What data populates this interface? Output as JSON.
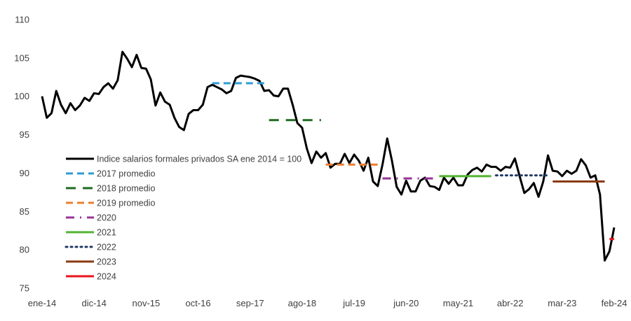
{
  "chart_data": {
    "type": "line",
    "title": "",
    "xlabel": "",
    "ylabel": "",
    "ylim": [
      75,
      110
    ],
    "yticks": [
      75,
      80,
      85,
      90,
      95,
      100,
      105,
      110
    ],
    "x_start_index": 0,
    "x_end_index": 121,
    "x_tick_labels": [
      {
        "label": "ene-14",
        "index": 0
      },
      {
        "label": "dic-14",
        "index": 11
      },
      {
        "label": "nov-15",
        "index": 22
      },
      {
        "label": "oct-16",
        "index": 33
      },
      {
        "label": "sep-17",
        "index": 44
      },
      {
        "label": "ago-18",
        "index": 55
      },
      {
        "label": "jul-19",
        "index": 66
      },
      {
        "label": "jun-20",
        "index": 77
      },
      {
        "label": "may-21",
        "index": 88
      },
      {
        "label": "abr-22",
        "index": 99
      },
      {
        "label": "mar-23",
        "index": 110
      },
      {
        "label": "feb-24",
        "index": 121
      }
    ],
    "series": [
      {
        "name": "Indice salarios formales privados SA ene 2014 = 100",
        "color": "#000000",
        "dash": "solid",
        "values": [
          100.0,
          97.2,
          97.8,
          100.7,
          98.9,
          97.8,
          99.1,
          98.2,
          98.8,
          99.8,
          99.4,
          100.4,
          100.3,
          101.2,
          101.7,
          101.0,
          102.1,
          105.8,
          104.9,
          103.8,
          105.4,
          103.7,
          103.6,
          102.2,
          98.8,
          100.5,
          99.3,
          98.9,
          97.2,
          96.0,
          95.6,
          97.7,
          98.2,
          98.2,
          98.9,
          101.2,
          101.5,
          101.2,
          100.9,
          100.4,
          100.7,
          102.4,
          102.7,
          102.6,
          102.5,
          102.3,
          102.0,
          100.7,
          100.8,
          100.1,
          100.0,
          101.0,
          101.0,
          98.9,
          96.5,
          95.9,
          93.2,
          91.3,
          92.8,
          92.0,
          92.6,
          90.7,
          91.2,
          91.2,
          92.5,
          91.3,
          92.4,
          91.6,
          90.3,
          92.0,
          88.9,
          88.3,
          91.1,
          94.5,
          91.6,
          88.2,
          87.2,
          89.0,
          87.6,
          87.6,
          89.0,
          89.4,
          88.3,
          88.2,
          87.8,
          89.4,
          88.6,
          89.4,
          88.4,
          88.4,
          89.8,
          90.4,
          90.7,
          90.2,
          91.1,
          90.8,
          90.8,
          90.3,
          90.8,
          90.7,
          91.9,
          89.6,
          87.4,
          87.9,
          88.7,
          86.9,
          88.9,
          92.3,
          90.3,
          90.2,
          89.6,
          90.3,
          89.9,
          90.3,
          91.8,
          91.0,
          89.4,
          89.7,
          87.2,
          78.6,
          79.8,
          82.9
        ]
      },
      {
        "name": "2017 promedio",
        "color": "#2e9bd6",
        "dash": "dashed",
        "from": 36,
        "to": 47,
        "value": 101.7
      },
      {
        "name": "2018 promedio",
        "color": "#1e6b1e",
        "dash": "longdash",
        "from": 48,
        "to": 59,
        "value": 96.9
      },
      {
        "name": "2019 promedio",
        "color": "#ed7d31",
        "dash": "dashed",
        "from": 60,
        "to": 71,
        "value": 91.1
      },
      {
        "name": "2020",
        "color": "#993399",
        "dash": "dashdot",
        "from": 72,
        "to": 83,
        "value": 89.3
      },
      {
        "name": "2021",
        "color": "#53b233",
        "dash": "solid",
        "from": 84,
        "to": 95,
        "value": 89.6
      },
      {
        "name": "2022",
        "color": "#1f3864",
        "dash": "dotted",
        "from": 96,
        "to": 107,
        "value": 89.7
      },
      {
        "name": "2023",
        "color": "#8b3a0f",
        "dash": "solid",
        "from": 108,
        "to": 119,
        "value": 88.9
      },
      {
        "name": "2024",
        "color": "#e8141b",
        "dash": "solid",
        "from": 120,
        "to": 121,
        "value": 81.4
      }
    ],
    "legend_position": "left-middle"
  }
}
